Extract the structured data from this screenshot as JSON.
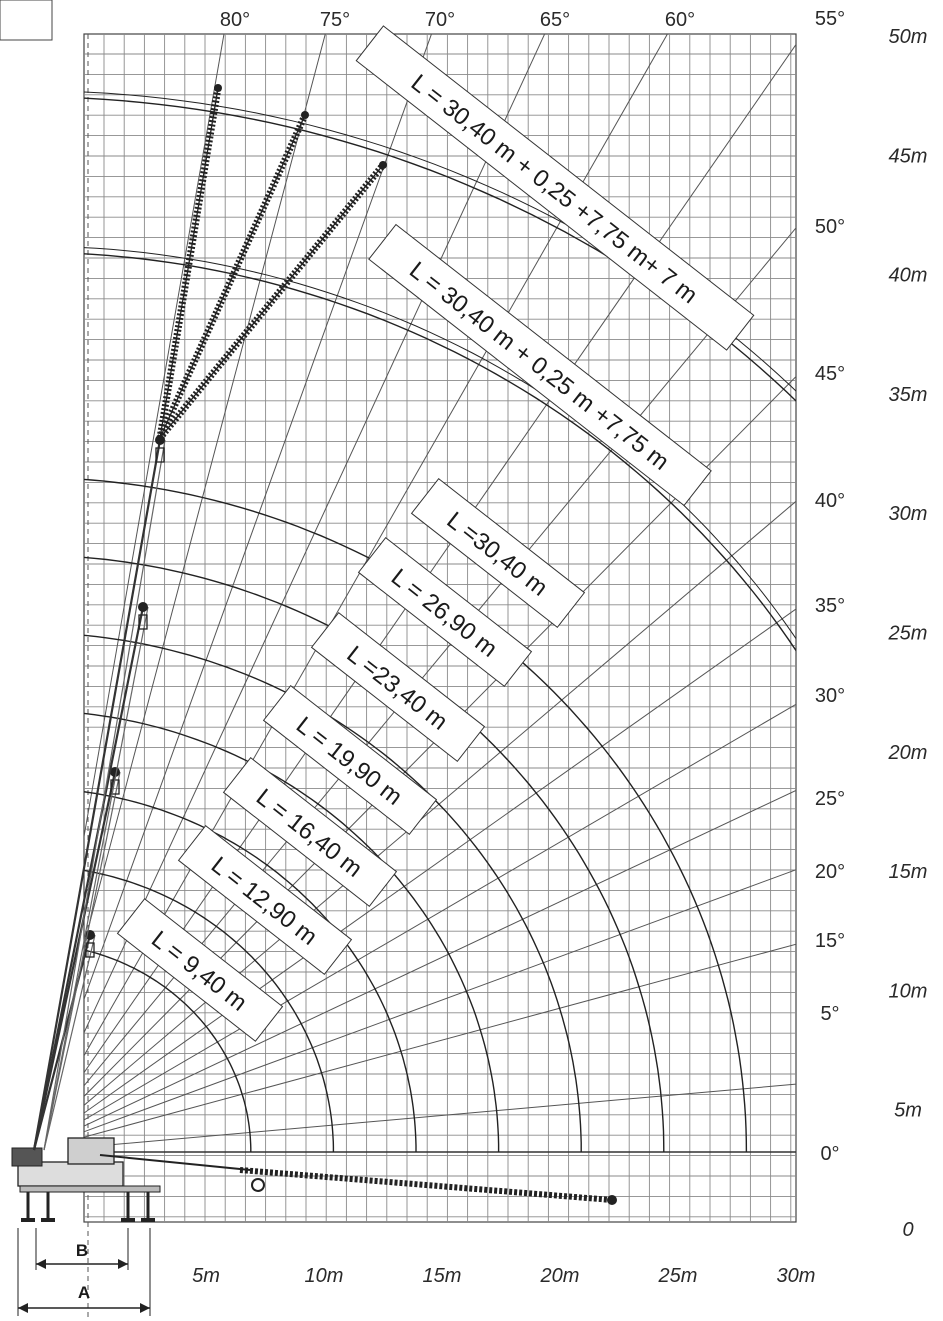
{
  "chart_data": {
    "type": "line",
    "title": "",
    "x_axis": {
      "unit": "m",
      "range": [
        -3,
        30
      ],
      "tick_values": [
        5,
        10,
        15,
        20,
        25,
        30
      ],
      "tick_labels": [
        "5m",
        "10m",
        "15m",
        "20m",
        "25m",
        "30m"
      ]
    },
    "y_axis": {
      "unit": "m",
      "range": [
        -3,
        50
      ],
      "tick_values": [
        0,
        5,
        10,
        15,
        20,
        25,
        30,
        35,
        40,
        45,
        50
      ],
      "tick_labels": [
        "0",
        "5m",
        "10m",
        "15m",
        "20m",
        "25m",
        "30m",
        "35m",
        "40m",
        "45m",
        "50m"
      ]
    },
    "angle_lines_deg": [
      0,
      5,
      15,
      20,
      25,
      30,
      35,
      40,
      45,
      50,
      55,
      60,
      65,
      70,
      75,
      80
    ],
    "angle_labels": [
      "0°",
      "5°",
      "15°",
      "20°",
      "25°",
      "30°",
      "35°",
      "40°",
      "45°",
      "50°",
      "55°",
      "60°",
      "65°",
      "70°",
      "75°",
      "80°"
    ],
    "pivot": {
      "x": -2.5,
      "y": 0
    },
    "series": [
      {
        "name": "L = 9,40 m",
        "radius_m": 9.4
      },
      {
        "name": "L = 12,90 m",
        "radius_m": 12.9
      },
      {
        "name": "L = 16,40 m",
        "radius_m": 16.4
      },
      {
        "name": "L = 19,90 m",
        "radius_m": 19.9
      },
      {
        "name": "L =23,40 m",
        "radius_m": 23.4
      },
      {
        "name": "L = 26,90 m",
        "radius_m": 26.9
      },
      {
        "name": "L =30,40 m",
        "radius_m": 30.4
      },
      {
        "name": "L = 30,40 m + 0,25 m +7,75 m",
        "radius_m": 38.4
      },
      {
        "name": "L = 30,40 m + 0,25 +7,75 m+ 7 m",
        "radius_m": 45.4
      }
    ],
    "dimensions": [
      {
        "label": "B"
      },
      {
        "label": "A"
      }
    ],
    "grid": true
  }
}
